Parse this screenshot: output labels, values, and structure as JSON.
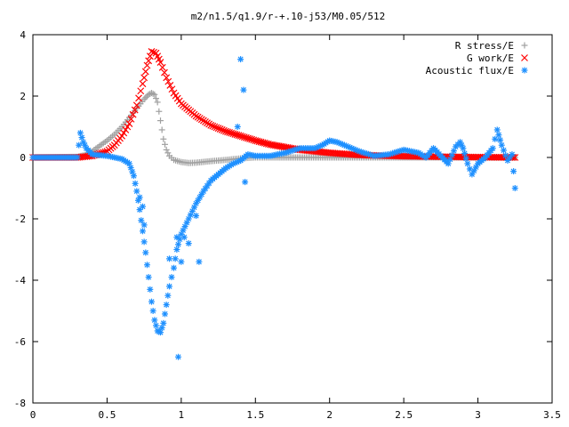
{
  "chart_data": {
    "type": "scatter",
    "title": "m2/n1.5/q1.9/r-+.10-j53/M0.05/512",
    "xlabel": "",
    "ylabel": "",
    "xlim": [
      0,
      3.5
    ],
    "ylim": [
      -8,
      4
    ],
    "x_ticks": [
      "0",
      "0.5",
      "1",
      "1.5",
      "2",
      "2.5",
      "3",
      "3.5"
    ],
    "y_ticks": [
      "4",
      "2",
      "0",
      "-2",
      "-4",
      "-6",
      "-8"
    ],
    "legend_position": "top-right",
    "series": [
      {
        "name": "R stress/E",
        "marker": "plus",
        "color": "#a0a0a0",
        "points": [
          [
            0.0,
            0.0
          ],
          [
            0.3,
            0.02
          ],
          [
            0.35,
            0.08
          ],
          [
            0.4,
            0.2
          ],
          [
            0.45,
            0.38
          ],
          [
            0.5,
            0.55
          ],
          [
            0.55,
            0.75
          ],
          [
            0.6,
            1.0
          ],
          [
            0.65,
            1.3
          ],
          [
            0.7,
            1.6
          ],
          [
            0.75,
            1.9
          ],
          [
            0.78,
            2.05
          ],
          [
            0.8,
            2.1
          ],
          [
            0.82,
            2.05
          ],
          [
            0.84,
            1.8
          ],
          [
            0.86,
            1.2
          ],
          [
            0.88,
            0.6
          ],
          [
            0.9,
            0.25
          ],
          [
            0.92,
            0.05
          ],
          [
            0.95,
            -0.08
          ],
          [
            1.0,
            -0.15
          ],
          [
            1.05,
            -0.18
          ],
          [
            1.1,
            -0.17
          ],
          [
            1.2,
            -0.12
          ],
          [
            1.3,
            -0.08
          ],
          [
            1.4,
            -0.03
          ],
          [
            1.5,
            0.0
          ],
          [
            1.6,
            0.0
          ],
          [
            2.0,
            0.0
          ],
          [
            2.5,
            0.0
          ],
          [
            3.0,
            0.0
          ],
          [
            3.25,
            0.0
          ]
        ]
      },
      {
        "name": "G work/E",
        "marker": "cross",
        "color": "#ff0000",
        "points": [
          [
            0.0,
            0.0
          ],
          [
            0.3,
            0.0
          ],
          [
            0.4,
            0.05
          ],
          [
            0.5,
            0.2
          ],
          [
            0.55,
            0.4
          ],
          [
            0.6,
            0.7
          ],
          [
            0.65,
            1.1
          ],
          [
            0.7,
            1.7
          ],
          [
            0.74,
            2.4
          ],
          [
            0.77,
            3.0
          ],
          [
            0.8,
            3.45
          ],
          [
            0.83,
            3.4
          ],
          [
            0.86,
            3.1
          ],
          [
            0.9,
            2.6
          ],
          [
            0.95,
            2.1
          ],
          [
            1.0,
            1.75
          ],
          [
            1.1,
            1.35
          ],
          [
            1.2,
            1.05
          ],
          [
            1.3,
            0.85
          ],
          [
            1.4,
            0.7
          ],
          [
            1.5,
            0.55
          ],
          [
            1.6,
            0.42
          ],
          [
            1.8,
            0.25
          ],
          [
            2.0,
            0.15
          ],
          [
            2.2,
            0.08
          ],
          [
            2.5,
            0.04
          ],
          [
            2.8,
            0.02
          ],
          [
            3.0,
            0.01
          ],
          [
            3.25,
            0.0
          ]
        ]
      },
      {
        "name": "Acoustic flux/E",
        "marker": "star",
        "color": "#1e90ff",
        "points": [
          [
            0.0,
            0.0
          ],
          [
            0.3,
            0.0
          ],
          [
            0.32,
            0.8
          ],
          [
            0.34,
            0.5
          ],
          [
            0.36,
            0.3
          ],
          [
            0.4,
            0.1
          ],
          [
            0.5,
            0.05
          ],
          [
            0.6,
            -0.05
          ],
          [
            0.65,
            -0.2
          ],
          [
            0.68,
            -0.6
          ],
          [
            0.7,
            -1.1
          ],
          [
            0.72,
            -1.7
          ],
          [
            0.74,
            -2.4
          ],
          [
            0.76,
            -3.1
          ],
          [
            0.78,
            -3.9
          ],
          [
            0.8,
            -4.7
          ],
          [
            0.82,
            -5.3
          ],
          [
            0.84,
            -5.65
          ],
          [
            0.86,
            -5.7
          ],
          [
            0.88,
            -5.4
          ],
          [
            0.9,
            -4.8
          ],
          [
            0.92,
            -4.2
          ],
          [
            0.95,
            -3.6
          ],
          [
            0.97,
            -3.0
          ],
          [
            1.0,
            -2.5
          ],
          [
            1.05,
            -2.0
          ],
          [
            1.1,
            -1.5
          ],
          [
            1.15,
            -1.1
          ],
          [
            1.2,
            -0.75
          ],
          [
            1.25,
            -0.55
          ],
          [
            1.3,
            -0.35
          ],
          [
            1.35,
            -0.2
          ],
          [
            1.4,
            -0.1
          ],
          [
            1.45,
            0.1
          ],
          [
            1.5,
            0.05
          ],
          [
            1.6,
            0.05
          ],
          [
            1.7,
            0.15
          ],
          [
            1.8,
            0.3
          ],
          [
            1.9,
            0.3
          ],
          [
            1.95,
            0.4
          ],
          [
            2.0,
            0.55
          ],
          [
            2.05,
            0.5
          ],
          [
            2.1,
            0.4
          ],
          [
            2.2,
            0.2
          ],
          [
            2.3,
            0.05
          ],
          [
            2.4,
            0.1
          ],
          [
            2.5,
            0.25
          ],
          [
            2.6,
            0.15
          ],
          [
            2.65,
            0.0
          ],
          [
            2.7,
            0.3
          ],
          [
            2.75,
            0.05
          ],
          [
            2.8,
            -0.2
          ],
          [
            2.85,
            0.35
          ],
          [
            2.88,
            0.5
          ],
          [
            2.9,
            0.3
          ],
          [
            2.93,
            -0.2
          ],
          [
            2.96,
            -0.55
          ],
          [
            3.0,
            -0.2
          ],
          [
            3.05,
            0.0
          ],
          [
            3.1,
            0.3
          ],
          [
            3.13,
            0.9
          ],
          [
            3.16,
            0.4
          ],
          [
            3.2,
            -0.1
          ],
          [
            3.23,
            0.1
          ],
          [
            3.25,
            -1.0
          ],
          [
            1.4,
            3.2
          ],
          [
            1.42,
            2.2
          ],
          [
            1.38,
            1.0
          ],
          [
            1.43,
            -0.8
          ],
          [
            0.98,
            -6.5
          ],
          [
            1.0,
            -3.4
          ],
          [
            0.97,
            -2.6
          ],
          [
            1.02,
            -2.6
          ],
          [
            1.05,
            -2.8
          ],
          [
            1.1,
            -1.9
          ],
          [
            1.12,
            -3.4
          ],
          [
            0.74,
            -1.6
          ],
          [
            0.72,
            -1.3
          ],
          [
            0.75,
            -2.2
          ],
          [
            0.92,
            -3.3
          ]
        ]
      }
    ]
  }
}
